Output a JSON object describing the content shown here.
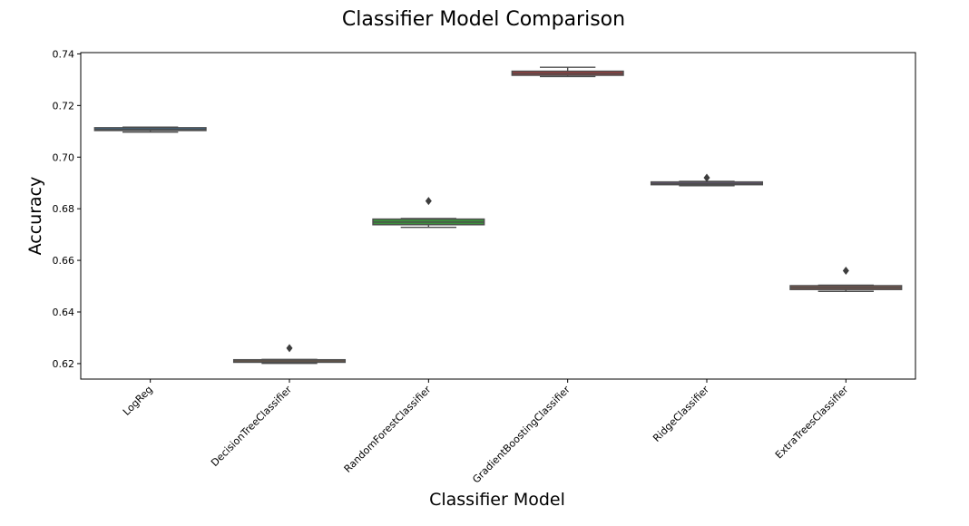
{
  "chart_data": {
    "type": "box",
    "title": "Classifier Model Comparison",
    "xlabel": "Classifier Model",
    "ylabel": "Accuracy",
    "ylim": [
      0.614,
      0.7405
    ],
    "yticks": [
      "0.62",
      "0.64",
      "0.66",
      "0.68",
      "0.70",
      "0.72",
      "0.74"
    ],
    "grid": false,
    "categories": [
      "LogReg",
      "DecisionTreeClassifier",
      "RandomForestClassifier",
      "GradientBoostingClassifier",
      "RidgeClassifier",
      "ExtraTreesClassifier"
    ],
    "boxes": [
      {
        "whisker_low": 0.7097,
        "q1": 0.7103,
        "median": 0.7107,
        "q3": 0.7114,
        "whisker_high": 0.7116,
        "outliers": [],
        "color": "#3a6f9a"
      },
      {
        "whisker_low": 0.6201,
        "q1": 0.6205,
        "median": 0.621,
        "q3": 0.6215,
        "whisker_high": 0.6216,
        "outliers": [
          0.626
        ],
        "color": "#c87b3c"
      },
      {
        "whisker_low": 0.6728,
        "q1": 0.6738,
        "median": 0.6748,
        "q3": 0.676,
        "whisker_high": 0.6762,
        "outliers": [
          0.683
        ],
        "color": "#3b913b"
      },
      {
        "whisker_low": 0.7312,
        "q1": 0.7317,
        "median": 0.7324,
        "q3": 0.7333,
        "whisker_high": 0.7348,
        "outliers": [],
        "color": "#a33a3a"
      },
      {
        "whisker_low": 0.6889,
        "q1": 0.6893,
        "median": 0.6898,
        "q3": 0.6904,
        "whisker_high": 0.6906,
        "outliers": [
          0.692
        ],
        "color": "#7d5f9a"
      },
      {
        "whisker_low": 0.648,
        "q1": 0.6487,
        "median": 0.6494,
        "q3": 0.6502,
        "whisker_high": 0.6504,
        "outliers": [
          0.656
        ],
        "color": "#8b5a4a"
      }
    ]
  }
}
